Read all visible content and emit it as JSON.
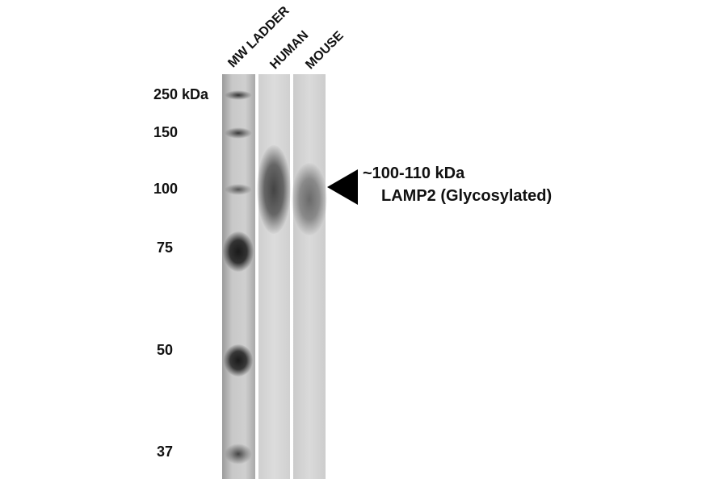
{
  "lanes": {
    "ladder": "MW LADDER",
    "human": "HUMAN",
    "mouse": "MOUSE"
  },
  "markers": [
    "250 kDa",
    "150",
    "100",
    "75",
    "50",
    "37"
  ],
  "annotation": {
    "size": "~100-110 kDa",
    "protein": "LAMP2 (Glycosylated)",
    "arrow-icon": "left-pointing-triangle"
  }
}
